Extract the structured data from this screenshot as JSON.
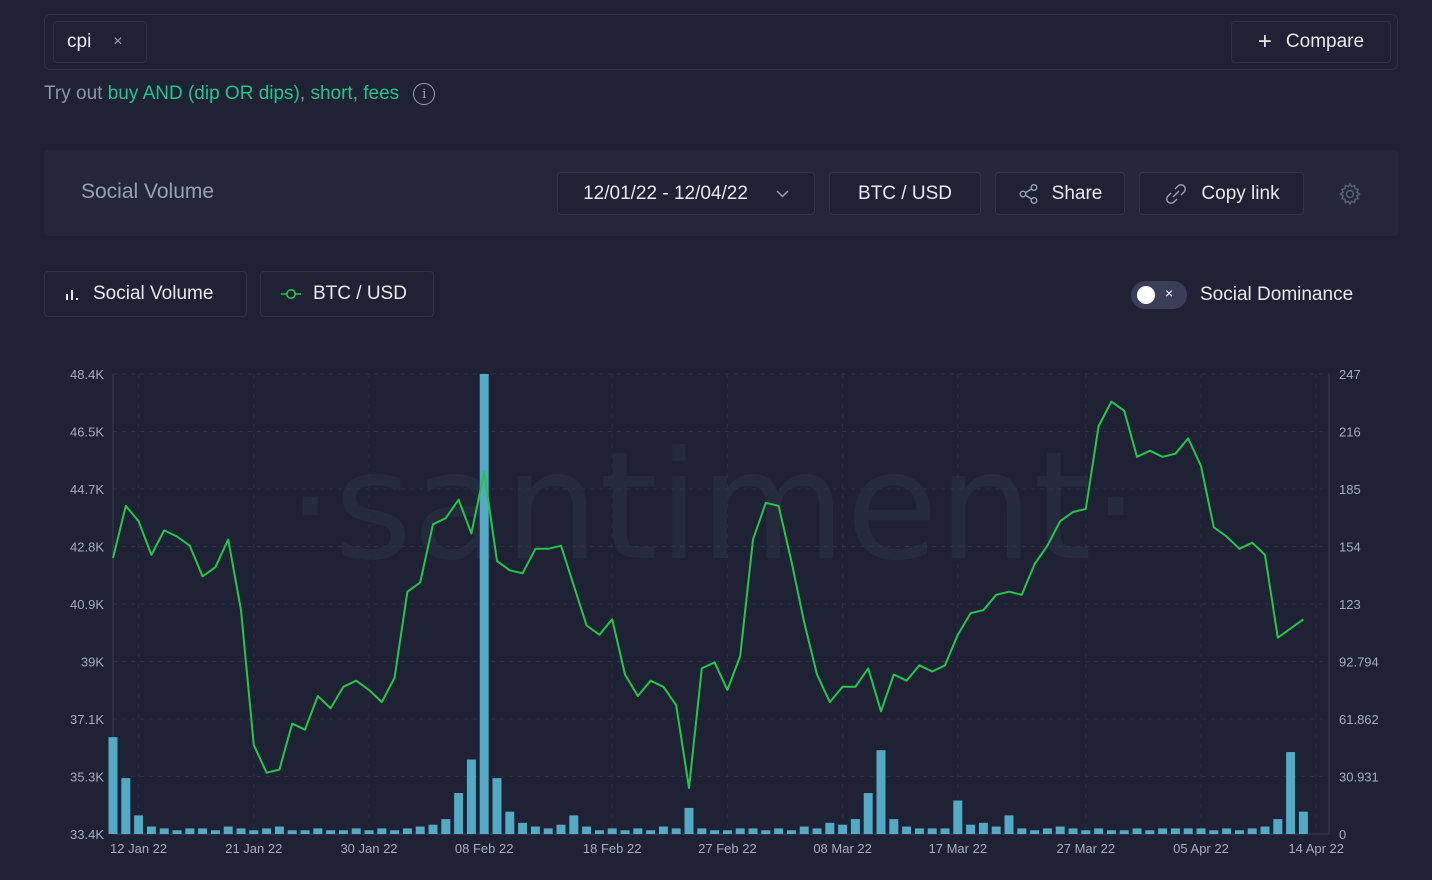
{
  "search": {
    "chip_label": "cpi",
    "chip_close": "×",
    "compare_label": "Compare"
  },
  "tryout": {
    "prefix": "Try out",
    "link1": "buy AND (dip OR dips)",
    "sep1": ",",
    "link2": "short",
    "sep2": ",",
    "link3": "fees",
    "info": "i"
  },
  "header": {
    "title": "Social Volume",
    "date_range": "12/01/22 - 12/04/22",
    "pair": "BTC / USD",
    "share_label": "Share",
    "copy_label": "Copy link"
  },
  "metrics": {
    "metric1": "Social Volume",
    "metric2": "BTC / USD",
    "toggle_x": "×",
    "toggle_label": "Social Dominance"
  },
  "colors": {
    "price_line": "#26c64b",
    "volume_bars": "#5ab8d4",
    "accent": "#26c48a",
    "background": "#1e2234"
  },
  "chart_data": {
    "type": "line",
    "watermark": "·santiment·",
    "x_tick_labels": [
      "12 Jan 22",
      "21 Jan 22",
      "30 Jan 22",
      "08 Feb 22",
      "18 Feb 22",
      "27 Feb 22",
      "08 Mar 22",
      "17 Mar 22",
      "27 Mar 22",
      "05 Apr 22",
      "14 Apr 22"
    ],
    "left_axis": {
      "series": "BTC / USD",
      "tick_labels": [
        "48.4K",
        "46.5K",
        "44.7K",
        "42.8K",
        "40.9K",
        "39K",
        "37.1K",
        "35.3K",
        "33.4K"
      ],
      "ylim": [
        33400,
        48400
      ]
    },
    "right_axis": {
      "series": "Social Volume",
      "tick_labels": [
        "247",
        "216",
        "185",
        "154",
        "123",
        "92.794",
        "61.862",
        "30.931",
        "0"
      ],
      "ylim": [
        0,
        247
      ]
    },
    "series": [
      {
        "name": "BTC / USD",
        "type": "line",
        "x": [
          "2022-01-10",
          "2022-01-11",
          "2022-01-12",
          "2022-01-13",
          "2022-01-14",
          "2022-01-15",
          "2022-01-16",
          "2022-01-17",
          "2022-01-18",
          "2022-01-19",
          "2022-01-20",
          "2022-01-21",
          "2022-01-22",
          "2022-01-23",
          "2022-01-24",
          "2022-01-25",
          "2022-01-26",
          "2022-01-27",
          "2022-01-28",
          "2022-01-29",
          "2022-01-30",
          "2022-01-31",
          "2022-02-01",
          "2022-02-02",
          "2022-02-03",
          "2022-02-04",
          "2022-02-05",
          "2022-02-06",
          "2022-02-07",
          "2022-02-08",
          "2022-02-09",
          "2022-02-10",
          "2022-02-11",
          "2022-02-12",
          "2022-02-13",
          "2022-02-14",
          "2022-02-15",
          "2022-02-16",
          "2022-02-17",
          "2022-02-18",
          "2022-02-19",
          "2022-02-20",
          "2022-02-21",
          "2022-02-22",
          "2022-02-23",
          "2022-02-24",
          "2022-02-25",
          "2022-02-26",
          "2022-02-27",
          "2022-02-28",
          "2022-03-01",
          "2022-03-02",
          "2022-03-03",
          "2022-03-04",
          "2022-03-05",
          "2022-03-06",
          "2022-03-07",
          "2022-03-08",
          "2022-03-09",
          "2022-03-10",
          "2022-03-11",
          "2022-03-12",
          "2022-03-13",
          "2022-03-14",
          "2022-03-15",
          "2022-03-16",
          "2022-03-17",
          "2022-03-18",
          "2022-03-19",
          "2022-03-20",
          "2022-03-21",
          "2022-03-22",
          "2022-03-23",
          "2022-03-24",
          "2022-03-25",
          "2022-03-26",
          "2022-03-27",
          "2022-03-28",
          "2022-03-29",
          "2022-03-30",
          "2022-03-31",
          "2022-04-01",
          "2022-04-02",
          "2022-04-03",
          "2022-04-04",
          "2022-04-05",
          "2022-04-06",
          "2022-04-07",
          "2022-04-08",
          "2022-04-09",
          "2022-04-10",
          "2022-04-11",
          "2022-04-12",
          "2022-04-13"
        ],
        "values": [
          42400,
          44100,
          43600,
          42500,
          43300,
          43100,
          42800,
          41800,
          42100,
          43000,
          40700,
          36300,
          35400,
          35500,
          37000,
          36800,
          37900,
          37500,
          38200,
          38400,
          38100,
          37700,
          38500,
          41300,
          41600,
          43500,
          43700,
          44300,
          43200,
          45200,
          42300,
          42000,
          41900,
          42700,
          42700,
          42800,
          41500,
          40200,
          39900,
          40400,
          38600,
          37900,
          38400,
          38200,
          37600,
          34900,
          38800,
          39000,
          38100,
          39200,
          43000,
          44200,
          44100,
          42300,
          40300,
          38600,
          37700,
          38200,
          38200,
          38800,
          37400,
          38600,
          38400,
          38900,
          38700,
          38900,
          39900,
          40600,
          40700,
          41200,
          41300,
          41200,
          42200,
          42800,
          43600,
          43900,
          44000,
          46700,
          47500,
          47200,
          45700,
          45900,
          45700,
          45800,
          46300,
          45400,
          43400,
          43100,
          42700,
          42900,
          42500,
          39800,
          40100,
          40400
        ],
        "show_points": false
      },
      {
        "name": "Social Volume",
        "type": "bar",
        "x": [
          "2022-01-10",
          "2022-01-11",
          "2022-01-12",
          "2022-01-13",
          "2022-01-14",
          "2022-01-15",
          "2022-01-16",
          "2022-01-17",
          "2022-01-18",
          "2022-01-19",
          "2022-01-20",
          "2022-01-21",
          "2022-01-22",
          "2022-01-23",
          "2022-01-24",
          "2022-01-25",
          "2022-01-26",
          "2022-01-27",
          "2022-01-28",
          "2022-01-29",
          "2022-01-30",
          "2022-01-31",
          "2022-02-01",
          "2022-02-02",
          "2022-02-03",
          "2022-02-04",
          "2022-02-05",
          "2022-02-06",
          "2022-02-07",
          "2022-02-08",
          "2022-02-09",
          "2022-02-10",
          "2022-02-11",
          "2022-02-12",
          "2022-02-13",
          "2022-02-14",
          "2022-02-15",
          "2022-02-16",
          "2022-02-17",
          "2022-02-18",
          "2022-02-19",
          "2022-02-20",
          "2022-02-21",
          "2022-02-22",
          "2022-02-23",
          "2022-02-24",
          "2022-02-25",
          "2022-02-26",
          "2022-02-27",
          "2022-02-28",
          "2022-03-01",
          "2022-03-02",
          "2022-03-03",
          "2022-03-04",
          "2022-03-05",
          "2022-03-06",
          "2022-03-07",
          "2022-03-08",
          "2022-03-09",
          "2022-03-10",
          "2022-03-11",
          "2022-03-12",
          "2022-03-13",
          "2022-03-14",
          "2022-03-15",
          "2022-03-16",
          "2022-03-17",
          "2022-03-18",
          "2022-03-19",
          "2022-03-20",
          "2022-03-21",
          "2022-03-22",
          "2022-03-23",
          "2022-03-24",
          "2022-03-25",
          "2022-03-26",
          "2022-03-27",
          "2022-03-28",
          "2022-03-29",
          "2022-03-30",
          "2022-03-31",
          "2022-04-01",
          "2022-04-02",
          "2022-04-03",
          "2022-04-04",
          "2022-04-05",
          "2022-04-06",
          "2022-04-07",
          "2022-04-08",
          "2022-04-09",
          "2022-04-10",
          "2022-04-11",
          "2022-04-12",
          "2022-04-13"
        ],
        "values": [
          52,
          30,
          10,
          4,
          3,
          2,
          3,
          3,
          2,
          4,
          3,
          2,
          3,
          4,
          2,
          2,
          3,
          2,
          2,
          3,
          2,
          3,
          2,
          3,
          4,
          5,
          8,
          22,
          40,
          247,
          30,
          12,
          6,
          4,
          3,
          5,
          10,
          4,
          2,
          3,
          2,
          3,
          2,
          4,
          3,
          14,
          3,
          2,
          2,
          3,
          3,
          2,
          3,
          2,
          4,
          3,
          6,
          5,
          8,
          22,
          45,
          8,
          4,
          3,
          3,
          3,
          18,
          5,
          6,
          4,
          10,
          3,
          2,
          3,
          4,
          3,
          2,
          3,
          2,
          2,
          3,
          2,
          3,
          3,
          3,
          3,
          2,
          3,
          2,
          3,
          4,
          8,
          44,
          12
        ],
        "show_points": false
      }
    ],
    "grid": true,
    "legend": "none"
  }
}
